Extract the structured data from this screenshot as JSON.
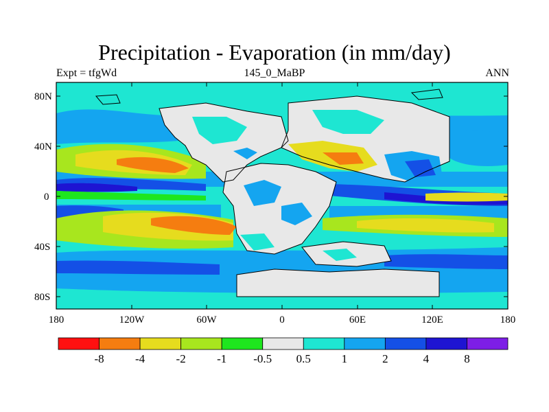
{
  "title": "Precipitation - Evaporation (in mm/day)",
  "subtitle_left": "Expt = tfgWd",
  "subtitle_center": "145_0_MaBP",
  "subtitle_right": "ANN",
  "lat_ticks": [
    "80N",
    "40N",
    "0",
    "40S",
    "80S"
  ],
  "lon_ticks": [
    "180",
    "120W",
    "60W",
    "0",
    "60E",
    "120E",
    "180"
  ],
  "colorbar": {
    "colors": [
      "#ff1010",
      "#f57d10",
      "#e6dc1e",
      "#a8e61e",
      "#1ee61e",
      "#e8e8e8",
      "#1ee6d2",
      "#14a5f0",
      "#1450e6",
      "#1e14d2",
      "#7d1ee6"
    ],
    "labels": [
      "-8",
      "-4",
      "-2",
      "-1",
      "-0.5",
      "0.5",
      "1",
      "2",
      "4",
      "8"
    ]
  }
}
